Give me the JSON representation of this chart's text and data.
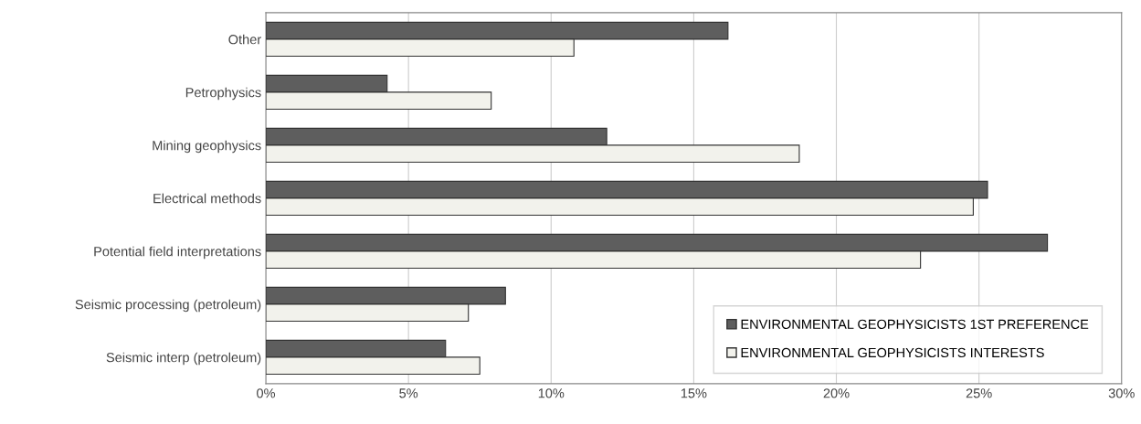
{
  "chart_data": {
    "type": "bar",
    "orientation": "horizontal",
    "categories": [
      "Other",
      "Petrophysics",
      "Mining geophysics",
      "Electrical methods",
      "Potential field interpretations",
      "Seismic processing (petroleum)",
      "Seismic interp (petroleum)"
    ],
    "series": [
      {
        "name": "ENVIRONMENTAL GEOPHYSICISTS 1ST PREFERENCE",
        "color": "#5e5e5e",
        "values": [
          16.2,
          4.25,
          11.95,
          25.3,
          27.4,
          8.4,
          6.3
        ]
      },
      {
        "name": "ENVIRONMENTAL GEOPHYSICISTS INTERESTS",
        "color": "#f2f2ec",
        "values": [
          10.8,
          7.9,
          18.7,
          24.8,
          22.95,
          7.1,
          7.5
        ]
      }
    ],
    "xlim": [
      0,
      30
    ],
    "xticks": [
      {
        "value": 0,
        "label": "0%"
      },
      {
        "value": 5,
        "label": "5%"
      },
      {
        "value": 10,
        "label": "10%"
      },
      {
        "value": 15,
        "label": "15%"
      },
      {
        "value": 20,
        "label": "20%"
      },
      {
        "value": 25,
        "label": "25%"
      },
      {
        "value": 30,
        "label": "30%"
      }
    ],
    "grid": "x",
    "legend": "bottom right"
  }
}
